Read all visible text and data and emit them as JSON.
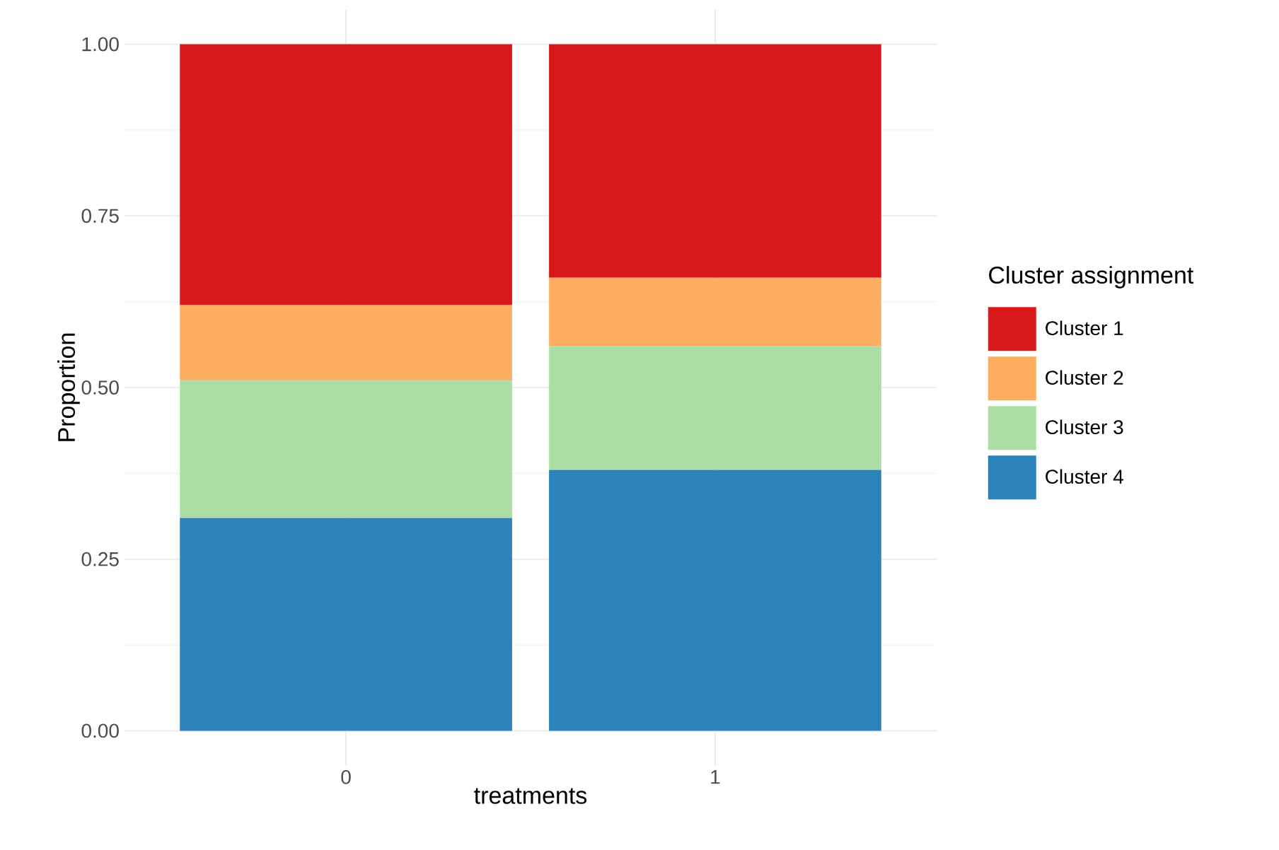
{
  "chart_data": {
    "type": "bar",
    "stacked": true,
    "xlabel": "treatments",
    "ylabel": "Proportion",
    "legend_title": "Cluster assignment",
    "categories": [
      "0",
      "1"
    ],
    "series": [
      {
        "name": "Cluster 4",
        "color": "#2b83ba",
        "values": [
          0.31,
          0.38
        ]
      },
      {
        "name": "Cluster 3",
        "color": "#abdda4",
        "values": [
          0.2,
          0.18
        ]
      },
      {
        "name": "Cluster 2",
        "color": "#fdae61",
        "values": [
          0.11,
          0.1
        ]
      },
      {
        "name": "Cluster 1",
        "color": "#d7191c",
        "values": [
          0.38,
          0.34
        ]
      }
    ],
    "ylim": [
      -0.05,
      1.05
    ],
    "yticks": [
      {
        "value": 0,
        "label": "0.00"
      },
      {
        "value": 0.25,
        "label": "0.25"
      },
      {
        "value": 0.5,
        "label": "0.50"
      },
      {
        "value": 0.75,
        "label": "0.75"
      },
      {
        "value": 1,
        "label": "1.00"
      }
    ],
    "grid": true,
    "legend": "right"
  }
}
